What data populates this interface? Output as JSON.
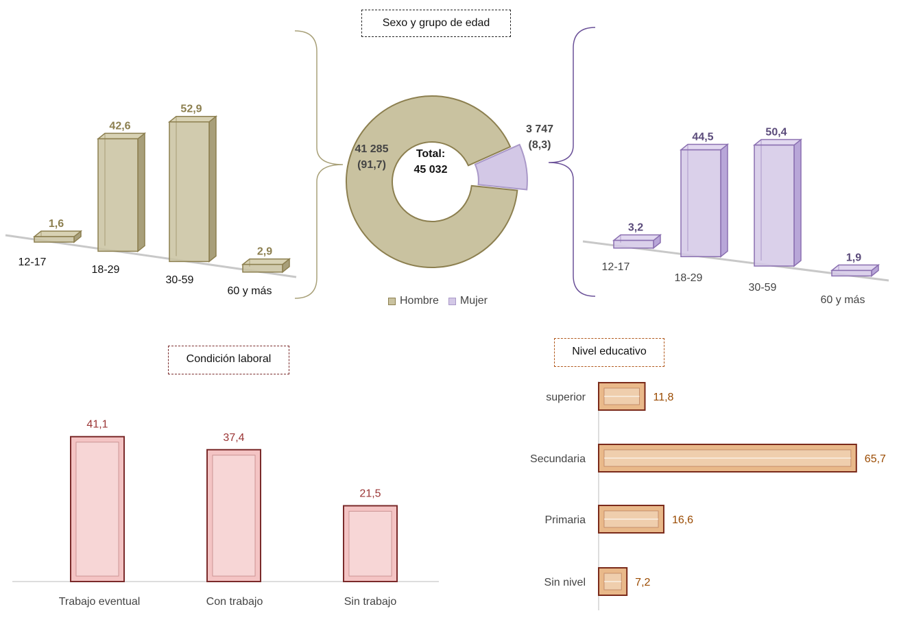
{
  "titles": {
    "top": "Sexo y grupo de edad",
    "labor": "Condición laboral",
    "edu": "Nivel educativo"
  },
  "donut": {
    "center_label": "Total:",
    "center_value": "45 032",
    "hombre_value": "41 285",
    "hombre_pct": "(91,7)",
    "mujer_value": "3 747",
    "mujer_pct": "(8,3)"
  },
  "legend": {
    "hombre": "Hombre",
    "mujer": "Mujer"
  },
  "colors": {
    "hombre": "#c9c2a0",
    "hombre_stroke": "#8c7f4f",
    "hombre_label": "#8c7f4f",
    "mujer": "#d3c8e6",
    "mujer_stroke": "#8a6fb0",
    "mujer_label": "#5a4a7a",
    "labor_fill": "#f4c4c4",
    "labor_stroke": "#7a2a2a",
    "labor_label": "#9a3434",
    "edu_fill": "#e9b98a",
    "edu_stroke": "#7a2a1a",
    "edu_label": "#9a4a00"
  },
  "chart_data": [
    {
      "type": "pie",
      "title": "Sexo y grupo de edad",
      "categories": [
        "Hombre",
        "Mujer"
      ],
      "values": [
        91.7,
        8.3
      ],
      "counts": [
        41285,
        3747
      ],
      "total": 45032,
      "legend": "bottom"
    },
    {
      "type": "bar",
      "categories": [
        "12-17",
        "18-29",
        "30-59",
        "60 y más"
      ],
      "series": [
        {
          "name": "Hombre",
          "values": [
            1.6,
            42.6,
            52.9,
            2.9
          ],
          "labels": [
            "1,6",
            "42,6",
            "52,9",
            "2,9"
          ]
        }
      ]
    },
    {
      "type": "bar",
      "categories": [
        "12-17",
        "18-29",
        "30-59",
        "60 y más"
      ],
      "series": [
        {
          "name": "Mujer",
          "values": [
            3.2,
            44.5,
            50.4,
            1.9
          ],
          "labels": [
            "3,2",
            "44,5",
            "50,4",
            "1,9"
          ]
        }
      ]
    },
    {
      "type": "bar",
      "title": "Condición laboral",
      "categories": [
        "Trabajo eventual",
        "Con trabajo",
        "Sin trabajo"
      ],
      "values": [
        41.1,
        37.4,
        21.5
      ],
      "labels": [
        "41,1",
        "37,4",
        "21,5"
      ]
    },
    {
      "type": "bar",
      "orientation": "horizontal",
      "title": "Nivel educativo",
      "categories": [
        "superior",
        "Secundaria",
        "Primaria",
        "Sin nivel"
      ],
      "values": [
        11.8,
        65.7,
        16.6,
        7.2
      ],
      "labels": [
        "11,8",
        "65,7",
        "16,6",
        "7,2"
      ]
    }
  ]
}
